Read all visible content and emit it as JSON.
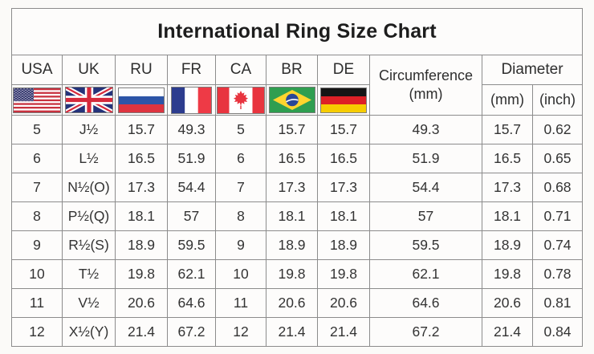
{
  "title": "International Ring Size Chart",
  "chart_data": {
    "type": "table",
    "title": "International Ring Size Chart",
    "column_groups": {
      "countries": [
        {
          "label": "USA",
          "flag": "usa-flag"
        },
        {
          "label": "UK",
          "flag": "uk-flag"
        },
        {
          "label": "RU",
          "flag": "russia-flag"
        },
        {
          "label": "FR",
          "flag": "france-flag"
        },
        {
          "label": "CA",
          "flag": "canada-flag"
        },
        {
          "label": "BR",
          "flag": "brazil-flag"
        },
        {
          "label": "DE",
          "flag": "germany-flag"
        }
      ],
      "circumference": {
        "label": "Circumference",
        "unit": "(mm)"
      },
      "diameter": {
        "label": "Diameter",
        "units": [
          "(mm)",
          "(inch)"
        ]
      }
    },
    "columns": [
      "USA",
      "UK",
      "RU",
      "FR",
      "CA",
      "BR",
      "DE",
      "Circumference (mm)",
      "Diameter (mm)",
      "Diameter (inch)"
    ],
    "rows": [
      [
        "5",
        "J½",
        "15.7",
        "49.3",
        "5",
        "15.7",
        "15.7",
        "49.3",
        "15.7",
        "0.62"
      ],
      [
        "6",
        "L½",
        "16.5",
        "51.9",
        "6",
        "16.5",
        "16.5",
        "51.9",
        "16.5",
        "0.65"
      ],
      [
        "7",
        "N½(O)",
        "17.3",
        "54.4",
        "7",
        "17.3",
        "17.3",
        "54.4",
        "17.3",
        "0.68"
      ],
      [
        "8",
        "P½(Q)",
        "18.1",
        "57",
        "8",
        "18.1",
        "18.1",
        "57",
        "18.1",
        "0.71"
      ],
      [
        "9",
        "R½(S)",
        "18.9",
        "59.5",
        "9",
        "18.9",
        "18.9",
        "59.5",
        "18.9",
        "0.74"
      ],
      [
        "10",
        "T½",
        "19.8",
        "62.1",
        "10",
        "19.8",
        "19.8",
        "62.1",
        "19.8",
        "0.78"
      ],
      [
        "11",
        "V½",
        "20.6",
        "64.6",
        "11",
        "20.6",
        "20.6",
        "64.6",
        "20.6",
        "0.81"
      ],
      [
        "12",
        "X½(Y)",
        "21.4",
        "67.2",
        "12",
        "21.4",
        "21.4",
        "67.2",
        "21.4",
        "0.84"
      ]
    ]
  },
  "colors": {
    "grid_border": "#8c8c8c",
    "text": "#3a3a3a",
    "background": "#fbfaf8"
  }
}
